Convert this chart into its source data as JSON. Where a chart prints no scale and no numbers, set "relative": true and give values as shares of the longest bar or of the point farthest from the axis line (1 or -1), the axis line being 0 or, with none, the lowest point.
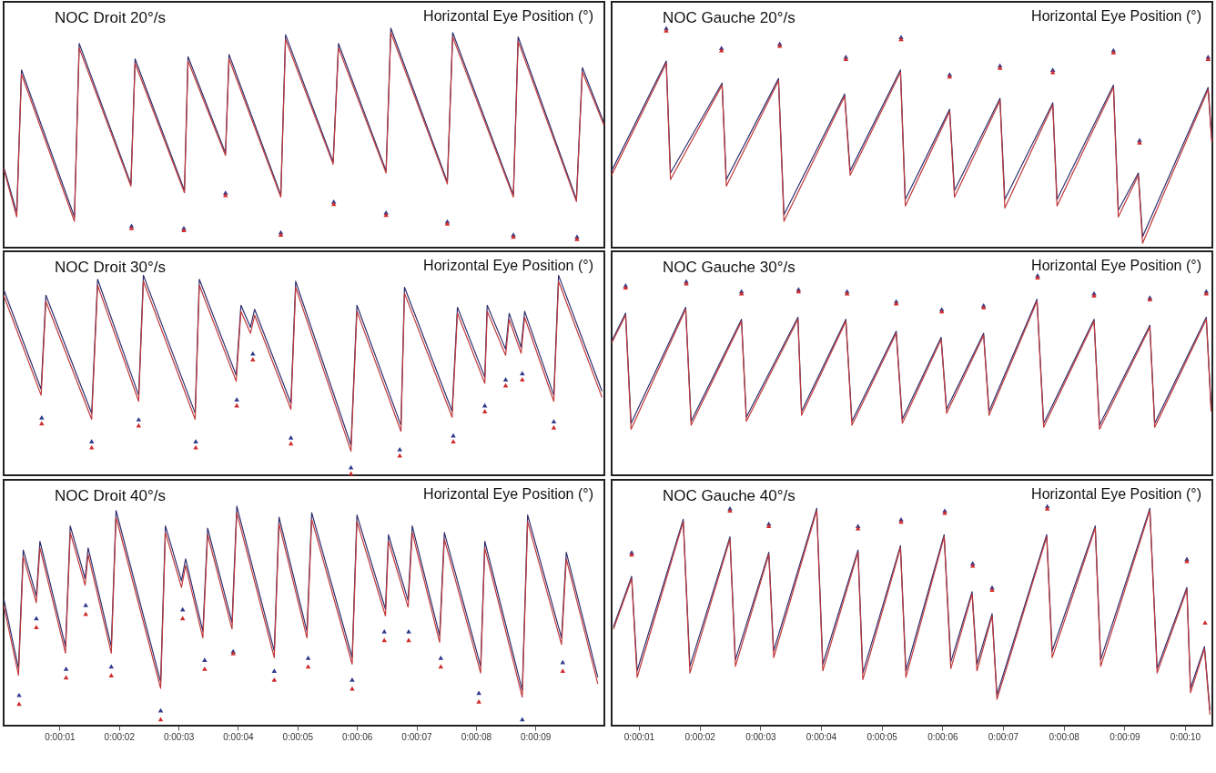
{
  "chart_data": [
    {
      "type": "line",
      "title": "NOC Droit 20°/s",
      "ylabel": "Horizontal Eye Position (°)",
      "relative": true,
      "xlim": [
        0.06,
        10.16
      ],
      "tick_labels": false,
      "line_style": "solid",
      "series": [
        {
          "color": "#2e2f6e",
          "x": [
            0.06,
            0.28,
            0.36,
            1.25,
            1.33,
            2.2,
            2.27,
            3.1,
            3.16,
            3.79,
            3.85,
            4.72,
            4.8,
            5.6,
            5.69,
            6.49,
            6.57,
            7.52,
            7.61,
            8.63,
            8.71,
            9.69,
            9.79,
            10.15
          ],
          "values": [
            0.37,
            0.16,
            0.81,
            0.14,
            0.93,
            0.29,
            0.86,
            0.26,
            0.87,
            0.43,
            0.88,
            0.24,
            0.97,
            0.39,
            0.93,
            0.35,
            1.0,
            0.3,
            0.98,
            0.24,
            0.96,
            0.22,
            0.82,
            0.57
          ]
        },
        {
          "color": "#c0393b",
          "x": [
            0.06,
            0.28,
            0.36,
            1.25,
            1.33,
            2.2,
            2.27,
            3.1,
            3.16,
            3.79,
            3.85,
            4.72,
            4.8,
            5.6,
            5.69,
            6.49,
            6.57,
            7.52,
            7.61,
            8.63,
            8.71,
            9.69,
            9.79,
            10.15
          ],
          "values": [
            0.36,
            0.14,
            0.79,
            0.12,
            0.91,
            0.28,
            0.84,
            0.25,
            0.85,
            0.42,
            0.86,
            0.23,
            0.95,
            0.38,
            0.91,
            0.34,
            0.98,
            0.29,
            0.96,
            0.23,
            0.94,
            0.21,
            0.8,
            0.56
          ]
        },
        {
          "type": "scatter",
          "marker": "triangle",
          "color": "#2e3a8c",
          "x": [
            2.21,
            3.09,
            3.79,
            4.72,
            5.61,
            6.49,
            7.52,
            8.63,
            9.7
          ],
          "values": [
            0.1,
            0.09,
            0.25,
            0.07,
            0.21,
            0.16,
            0.12,
            0.06,
            0.05
          ]
        },
        {
          "type": "scatter",
          "marker": "triangle",
          "color": "#d02a2a",
          "x": [
            2.21,
            3.09,
            3.79,
            4.72,
            5.61,
            6.49,
            7.52,
            8.63,
            9.7
          ],
          "values": [
            0.09,
            0.08,
            0.24,
            0.06,
            0.2,
            0.15,
            0.11,
            0.05,
            0.04
          ]
        }
      ]
    },
    {
      "type": "line",
      "title": "NOC Gauche 20°/s",
      "ylabel": "Horizontal Eye Position (°)",
      "relative": true,
      "xlim": [
        0.55,
        10.45
      ],
      "tick_labels": false,
      "line_style": "solid",
      "series": [
        {
          "color": "#2e2f6e",
          "x": [
            0.55,
            1.45,
            1.52,
            2.37,
            2.44,
            3.3,
            3.39,
            4.39,
            4.48,
            5.31,
            5.39,
            6.12,
            6.2,
            6.95,
            7.03,
            7.82,
            7.89,
            8.82,
            8.9,
            9.23,
            9.3,
            10.38,
            10.44
          ],
          "values": [
            0.35,
            0.85,
            0.34,
            0.75,
            0.31,
            0.77,
            0.15,
            0.7,
            0.35,
            0.81,
            0.22,
            0.63,
            0.26,
            0.68,
            0.22,
            0.66,
            0.22,
            0.74,
            0.17,
            0.34,
            0.05,
            0.73,
            0.5
          ]
        },
        {
          "color": "#c0393b",
          "x": [
            0.55,
            1.45,
            1.52,
            2.37,
            2.44,
            3.3,
            3.39,
            4.39,
            4.48,
            5.31,
            5.39,
            6.12,
            6.2,
            6.95,
            7.03,
            7.82,
            7.89,
            8.82,
            8.9,
            9.23,
            9.3,
            10.38,
            10.44
          ],
          "values": [
            0.33,
            0.84,
            0.31,
            0.74,
            0.28,
            0.76,
            0.12,
            0.69,
            0.33,
            0.8,
            0.19,
            0.62,
            0.23,
            0.67,
            0.18,
            0.65,
            0.19,
            0.73,
            0.14,
            0.33,
            0.02,
            0.72,
            0.48
          ]
        },
        {
          "type": "scatter",
          "marker": "triangle",
          "color": "#2e3a8c",
          "x": [
            1.45,
            2.36,
            3.32,
            4.41,
            5.32,
            6.12,
            6.95,
            7.82,
            8.82,
            9.25,
            10.38
          ],
          "values": [
            1.0,
            0.91,
            0.93,
            0.87,
            0.96,
            0.79,
            0.83,
            0.81,
            0.9,
            0.49,
            0.87
          ]
        },
        {
          "type": "scatter",
          "marker": "triangle",
          "color": "#d02a2a",
          "x": [
            1.45,
            2.36,
            3.32,
            4.41,
            5.32,
            6.12,
            6.95,
            7.82,
            8.82,
            9.25,
            10.38
          ],
          "values": [
            0.99,
            0.9,
            0.92,
            0.86,
            0.95,
            0.78,
            0.82,
            0.8,
            0.89,
            0.48,
            0.86
          ]
        }
      ]
    },
    {
      "type": "line",
      "title": "NOC Droit 30°/s",
      "ylabel": "Horizontal Eye Position (°)",
      "relative": true,
      "xlim": [
        0.06,
        10.16
      ],
      "tick_labels": false,
      "line_style": "solid",
      "series": [
        {
          "color": "#2e2f6e",
          "x": [
            0.06,
            0.69,
            0.77,
            1.54,
            1.64,
            2.33,
            2.41,
            3.28,
            3.35,
            3.97,
            4.05,
            4.21,
            4.28,
            4.89,
            4.97,
            5.9,
            6.0,
            6.74,
            6.8,
            7.6,
            7.69,
            8.15,
            8.19,
            8.5,
            8.56,
            8.76,
            8.82,
            9.31,
            9.39,
            10.12
          ],
          "values": [
            0.93,
            0.43,
            0.9,
            0.31,
            0.98,
            0.4,
            1.0,
            0.31,
            0.98,
            0.5,
            0.85,
            0.74,
            0.83,
            0.36,
            0.97,
            0.15,
            0.85,
            0.25,
            0.94,
            0.32,
            0.84,
            0.49,
            0.85,
            0.63,
            0.81,
            0.64,
            0.82,
            0.4,
            1.0,
            0.42
          ]
        },
        {
          "color": "#c0393b",
          "x": [
            0.06,
            0.69,
            0.77,
            1.54,
            1.64,
            2.33,
            2.41,
            3.28,
            3.35,
            3.97,
            4.05,
            4.21,
            4.28,
            4.89,
            4.97,
            5.9,
            6.0,
            6.74,
            6.8,
            7.6,
            7.69,
            8.15,
            8.19,
            8.5,
            8.56,
            8.76,
            8.82,
            9.31,
            9.39,
            10.12
          ],
          "values": [
            0.9,
            0.4,
            0.87,
            0.28,
            0.95,
            0.37,
            0.97,
            0.28,
            0.95,
            0.47,
            0.82,
            0.71,
            0.8,
            0.33,
            0.94,
            0.12,
            0.82,
            0.22,
            0.91,
            0.29,
            0.81,
            0.46,
            0.82,
            0.6,
            0.78,
            0.61,
            0.79,
            0.37,
            0.97,
            0.39
          ]
        },
        {
          "type": "scatter",
          "marker": "triangle",
          "color": "#2e3a8c",
          "x": [
            0.7,
            1.54,
            2.33,
            3.29,
            3.98,
            4.25,
            4.89,
            5.9,
            6.72,
            7.62,
            8.15,
            8.5,
            8.78,
            9.31
          ],
          "values": [
            0.29,
            0.17,
            0.28,
            0.17,
            0.38,
            0.61,
            0.19,
            0.04,
            0.13,
            0.2,
            0.35,
            0.48,
            0.51,
            0.27
          ]
        },
        {
          "type": "scatter",
          "marker": "triangle",
          "color": "#d02a2a",
          "x": [
            0.7,
            1.54,
            2.33,
            3.29,
            3.98,
            4.25,
            4.89,
            5.9,
            6.72,
            7.62,
            8.15,
            8.5,
            8.78,
            9.31
          ],
          "values": [
            0.26,
            0.14,
            0.25,
            0.14,
            0.35,
            0.58,
            0.16,
            0.01,
            0.1,
            0.17,
            0.32,
            0.45,
            0.48,
            0.24
          ]
        }
      ]
    },
    {
      "type": "line",
      "title": "NOC Gauche 30°/s",
      "ylabel": "Horizontal Eye Position (°)",
      "relative": true,
      "xlim": [
        0.55,
        10.45
      ],
      "tick_labels": false,
      "line_style": "solid",
      "series": [
        {
          "color": "#2e2f6e",
          "x": [
            0.55,
            0.78,
            0.87,
            1.77,
            1.86,
            2.69,
            2.77,
            3.62,
            3.68,
            4.41,
            4.51,
            5.24,
            5.34,
            5.98,
            6.07,
            6.68,
            6.77,
            7.56,
            7.67,
            8.5,
            8.59,
            9.42,
            9.5,
            10.35,
            10.43
          ],
          "values": [
            0.67,
            0.81,
            0.26,
            0.84,
            0.27,
            0.78,
            0.29,
            0.79,
            0.32,
            0.78,
            0.27,
            0.72,
            0.28,
            0.69,
            0.33,
            0.71,
            0.32,
            0.88,
            0.26,
            0.78,
            0.25,
            0.75,
            0.26,
            0.79,
            0.34
          ]
        },
        {
          "color": "#c0393b",
          "x": [
            0.55,
            0.78,
            0.87,
            1.77,
            1.86,
            2.69,
            2.77,
            3.62,
            3.68,
            4.41,
            4.51,
            5.24,
            5.34,
            5.98,
            6.07,
            6.68,
            6.77,
            7.56,
            7.67,
            8.5,
            8.59,
            9.42,
            9.5,
            10.35,
            10.43
          ],
          "values": [
            0.66,
            0.8,
            0.23,
            0.83,
            0.25,
            0.77,
            0.27,
            0.78,
            0.3,
            0.77,
            0.25,
            0.71,
            0.26,
            0.68,
            0.31,
            0.7,
            0.3,
            0.87,
            0.24,
            0.77,
            0.23,
            0.74,
            0.24,
            0.78,
            0.32
          ]
        },
        {
          "type": "scatter",
          "marker": "triangle",
          "color": "#2e3a8c",
          "x": [
            0.78,
            1.78,
            2.69,
            3.63,
            4.43,
            5.24,
            5.99,
            6.68,
            7.57,
            8.5,
            9.42,
            10.35
          ],
          "values": [
            0.95,
            0.97,
            0.92,
            0.93,
            0.92,
            0.87,
            0.83,
            0.85,
            1.0,
            0.91,
            0.89,
            0.92
          ]
        },
        {
          "type": "scatter",
          "marker": "triangle",
          "color": "#d02a2a",
          "x": [
            0.78,
            1.78,
            2.69,
            3.63,
            4.43,
            5.24,
            5.99,
            6.68,
            7.57,
            8.5,
            9.42,
            10.35
          ],
          "values": [
            0.94,
            0.96,
            0.91,
            0.92,
            0.91,
            0.86,
            0.82,
            0.84,
            0.99,
            0.9,
            0.88,
            0.91
          ]
        }
      ]
    },
    {
      "type": "line",
      "title": "NOC Droit 40°/s",
      "ylabel": "Horizontal Eye Position (°)",
      "relative": true,
      "xlim": [
        0.06,
        10.16
      ],
      "tick_labels": "x",
      "line_style": "solid",
      "xticks": [
        {
          "value": 1,
          "label": "0:00:01"
        },
        {
          "value": 2,
          "label": "0:00:02"
        },
        {
          "value": 3,
          "label": "0:00:03"
        },
        {
          "value": 4,
          "label": "0:00:04"
        },
        {
          "value": 5,
          "label": "0:00:05"
        },
        {
          "value": 6,
          "label": "0:00:06"
        },
        {
          "value": 7,
          "label": "0:00:07"
        },
        {
          "value": 8,
          "label": "0:00:08"
        },
        {
          "value": 9,
          "label": "0:00:09"
        }
      ],
      "series": [
        {
          "color": "#2e2f6e",
          "x": [
            0.06,
            0.31,
            0.39,
            0.61,
            0.67,
            1.1,
            1.18,
            1.43,
            1.48,
            1.87,
            1.95,
            2.7,
            2.78,
            3.05,
            3.12,
            3.41,
            3.49,
            3.9,
            3.98,
            4.61,
            4.69,
            5.16,
            5.24,
            5.92,
            6.0,
            6.48,
            6.53,
            6.86,
            6.93,
            7.39,
            7.47,
            8.08,
            8.15,
            8.78,
            8.87,
            9.44,
            9.52,
            10.05
          ],
          "values": [
            0.58,
            0.26,
            0.8,
            0.59,
            0.84,
            0.36,
            0.91,
            0.67,
            0.81,
            0.36,
            0.98,
            0.2,
            0.91,
            0.66,
            0.76,
            0.43,
            0.9,
            0.47,
            1.0,
            0.34,
            0.95,
            0.43,
            0.97,
            0.31,
            0.96,
            0.53,
            0.87,
            0.57,
            0.91,
            0.41,
            0.88,
            0.27,
            0.84,
            0.16,
            0.96,
            0.4,
            0.79,
            0.22
          ]
        },
        {
          "color": "#c0393b",
          "x": [
            0.06,
            0.31,
            0.39,
            0.61,
            0.67,
            1.1,
            1.18,
            1.43,
            1.48,
            1.87,
            1.95,
            2.7,
            2.78,
            3.05,
            3.12,
            3.41,
            3.49,
            3.9,
            3.98,
            4.61,
            4.69,
            5.16,
            5.24,
            5.92,
            6.0,
            6.48,
            6.53,
            6.86,
            6.93,
            7.39,
            7.47,
            8.08,
            8.15,
            8.78,
            8.87,
            9.44,
            9.52,
            10.05
          ],
          "values": [
            0.55,
            0.23,
            0.77,
            0.56,
            0.81,
            0.33,
            0.88,
            0.64,
            0.78,
            0.33,
            0.95,
            0.17,
            0.88,
            0.63,
            0.73,
            0.4,
            0.87,
            0.44,
            0.97,
            0.31,
            0.92,
            0.4,
            0.94,
            0.28,
            0.93,
            0.5,
            0.84,
            0.54,
            0.88,
            0.38,
            0.85,
            0.24,
            0.81,
            0.13,
            0.93,
            0.37,
            0.76,
            0.19
          ]
        },
        {
          "type": "scatter",
          "marker": "triangle",
          "color": "#2e3a8c",
          "x": [
            0.32,
            0.61,
            1.11,
            1.44,
            1.87,
            2.7,
            3.07,
            3.44,
            3.92,
            4.61,
            5.18,
            5.92,
            6.46,
            6.87,
            7.41,
            8.05,
            8.78,
            9.46
          ],
          "values": [
            0.14,
            0.49,
            0.26,
            0.55,
            0.27,
            0.07,
            0.53,
            0.3,
            0.34,
            0.25,
            0.31,
            0.21,
            0.43,
            0.43,
            0.31,
            0.15,
            0.03,
            0.29
          ]
        },
        {
          "type": "scatter",
          "marker": "triangle",
          "color": "#d02a2a",
          "x": [
            0.32,
            0.61,
            1.11,
            1.44,
            1.87,
            2.7,
            3.07,
            3.44,
            3.92,
            4.61,
            5.18,
            5.92,
            6.46,
            6.87,
            7.41,
            8.05,
            9.46
          ],
          "values": [
            0.1,
            0.45,
            0.22,
            0.51,
            0.23,
            0.03,
            0.49,
            0.26,
            0.33,
            0.21,
            0.27,
            0.17,
            0.39,
            0.39,
            0.27,
            0.11,
            0.25
          ]
        }
      ]
    },
    {
      "type": "line",
      "title": "NOC Gauche 40°/s",
      "ylabel": "Horizontal Eye Position (°)",
      "relative": true,
      "xlim": [
        0.55,
        10.45
      ],
      "tick_labels": "x",
      "line_style": "solid",
      "xticks": [
        {
          "value": 1,
          "label": "0:00:01"
        },
        {
          "value": 2,
          "label": "0:00:02"
        },
        {
          "value": 3,
          "label": "0:00:03"
        },
        {
          "value": 4,
          "label": "0:00:04"
        },
        {
          "value": 5,
          "label": "0:00:05"
        },
        {
          "value": 6,
          "label": "0:00:06"
        },
        {
          "value": 7,
          "label": "0:00:07"
        },
        {
          "value": 8,
          "label": "0:00:08"
        },
        {
          "value": 9,
          "label": "0:00:09"
        },
        {
          "value": 10,
          "label": "0:00:10"
        }
      ],
      "series": [
        {
          "color": "#2e2f6e",
          "x": [
            0.58,
            0.88,
            0.97,
            1.73,
            1.84,
            2.5,
            2.59,
            3.14,
            3.22,
            3.93,
            4.03,
            4.61,
            4.69,
            5.31,
            5.4,
            6.03,
            6.14,
            6.49,
            6.57,
            6.82,
            6.9,
            7.72,
            7.81,
            8.52,
            8.61,
            9.42,
            9.54,
            10.03,
            10.09,
            10.32,
            10.41
          ],
          "values": [
            0.45,
            0.68,
            0.25,
            0.94,
            0.27,
            0.86,
            0.3,
            0.79,
            0.34,
            0.99,
            0.28,
            0.8,
            0.24,
            0.82,
            0.25,
            0.87,
            0.29,
            0.61,
            0.28,
            0.51,
            0.14,
            0.87,
            0.34,
            0.91,
            0.3,
            0.99,
            0.26,
            0.63,
            0.17,
            0.36,
            0.07
          ]
        },
        {
          "color": "#c0393b",
          "x": [
            0.58,
            0.88,
            0.97,
            1.73,
            1.84,
            2.5,
            2.59,
            3.14,
            3.22,
            3.93,
            4.03,
            4.61,
            4.69,
            5.31,
            5.4,
            6.03,
            6.14,
            6.49,
            6.57,
            6.82,
            6.9,
            7.72,
            7.81,
            8.52,
            8.61,
            9.42,
            9.54,
            10.03,
            10.09,
            10.32,
            10.41
          ],
          "values": [
            0.44,
            0.67,
            0.22,
            0.93,
            0.24,
            0.85,
            0.27,
            0.78,
            0.31,
            0.98,
            0.25,
            0.79,
            0.21,
            0.81,
            0.22,
            0.86,
            0.26,
            0.6,
            0.25,
            0.5,
            0.12,
            0.86,
            0.31,
            0.9,
            0.27,
            0.98,
            0.24,
            0.62,
            0.15,
            0.35,
            0.05
          ]
        },
        {
          "type": "scatter",
          "marker": "triangle",
          "color": "#2e3a8c",
          "x": [
            0.88,
            2.5,
            3.14,
            4.61,
            5.32,
            6.04,
            6.5,
            6.82,
            7.73,
            10.03
          ],
          "values": [
            0.79,
            0.99,
            0.92,
            0.91,
            0.94,
            0.98,
            0.74,
            0.63,
            1.0,
            0.76
          ]
        },
        {
          "type": "scatter",
          "marker": "triangle",
          "color": "#d02a2a",
          "x": [
            0.88,
            2.5,
            3.14,
            4.61,
            5.32,
            6.04,
            6.5,
            6.82,
            7.73,
            10.03,
            10.33
          ],
          "values": [
            0.78,
            0.98,
            0.91,
            0.9,
            0.93,
            0.97,
            0.73,
            0.62,
            0.99,
            0.75,
            0.47
          ]
        }
      ]
    }
  ]
}
